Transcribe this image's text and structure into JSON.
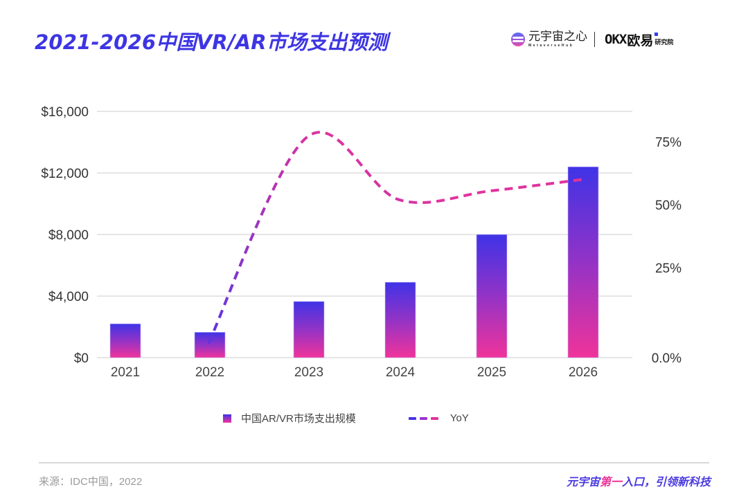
{
  "header": {
    "title": "2021-2026中国VR/AR市场支出预测",
    "logo_metaverse_cn": "元宇宙之心",
    "logo_metaverse_en": "MetaverseHub",
    "logo_okx_mark": "OKX",
    "logo_okx_cn": "欧易",
    "logo_okx_sub": "研究院"
  },
  "chart_data": {
    "type": "bar",
    "title": "2021-2026中国VR/AR市场支出预测",
    "categories": [
      "2021",
      "2022",
      "2023",
      "2024",
      "2025",
      "2026"
    ],
    "series": [
      {
        "name": "中国AR/VR市场支出规模",
        "type": "bar",
        "axis": "left",
        "values": [
          2200,
          1650,
          3650,
          4900,
          8000,
          12400
        ]
      },
      {
        "name": "YoY",
        "type": "line",
        "axis": "right",
        "style": "dashed",
        "values": [
          null,
          4,
          77,
          52,
          55.5,
          60
        ]
      }
    ],
    "left_axis": {
      "ticks": [
        "$0",
        "$4,000",
        "$8,000",
        "$12,000",
        "$16,000"
      ],
      "tick_values": [
        0,
        4000,
        8000,
        12000,
        16000
      ],
      "ylim": [
        0,
        16000
      ]
    },
    "right_axis": {
      "ticks": [
        "0.0%",
        "25%",
        "50%",
        "75%"
      ],
      "tick_values": [
        0,
        25,
        50,
        75
      ]
    },
    "grid": true,
    "legend_position": "bottom",
    "colors": {
      "bar_top": "#3f33e6",
      "bar_bottom": "#f0339a",
      "line_start": "#5b34e0",
      "line_end": "#e0339e",
      "grid": "#dddddd"
    }
  },
  "legend": {
    "bar_label": "中国AR/VR市场支出规模",
    "line_label": "YoY"
  },
  "footer": {
    "source": "来源：IDC中国，2022",
    "slogan_a": "元宇宙",
    "slogan_b": "第一",
    "slogan_c": "入口，引领新科技"
  }
}
